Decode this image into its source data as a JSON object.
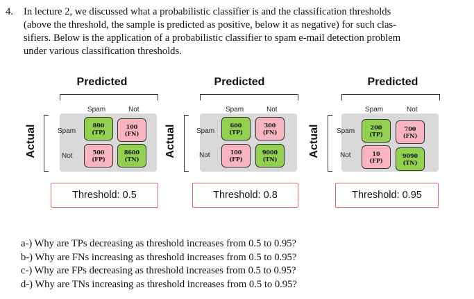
{
  "problem": {
    "number": "4.",
    "intro_line1": "In lecture 2, we discussed what a probabilistic classifier is and the classification thresholds",
    "intro_line2": "(above the threshold, the sample is predicted as positive, below it as negative) for such clas-",
    "intro_line3": "sifiers. Below is the application of a probabilistic classifier to spam e-mail detection problem",
    "intro_line4": "under various classification thresholds."
  },
  "labels": {
    "predicted": "Predicted",
    "actual": "Actual",
    "col_spam": "Spam",
    "col_not": "Not",
    "row_spam": "Spam",
    "row_not": "Not"
  },
  "matrices": [
    {
      "tp": "800",
      "tp_tag": "(TP)",
      "fn": "100",
      "fn_tag": "(FN)",
      "fp": "500",
      "fp_tag": "(FP)",
      "tn": "8600",
      "tn_tag": "(TN)",
      "threshold_label": "Threshold: 0.5"
    },
    {
      "tp": "600",
      "tp_tag": "(TP)",
      "fn": "300",
      "fn_tag": "(FN)",
      "fp": "100",
      "fp_tag": "(FP)",
      "tn": "9000",
      "tn_tag": "(TN)",
      "threshold_label": "Threshold: 0.8"
    },
    {
      "tp": "200",
      "tp_tag": "(TP)",
      "fn": "700",
      "fn_tag": "(FN)",
      "fp": "10",
      "fp_tag": "(FP)",
      "tn": "9090",
      "tn_tag": "(TN)",
      "threshold_label": "Threshold: 0.95"
    }
  ],
  "colors": {
    "correct": "#92d050",
    "incorrect": "#f8b5c0",
    "threshold_border": "#e06666"
  },
  "questions": [
    "a-) Why are TPs decreasing as threshold increases from 0.5 to 0.95?",
    "b-) Why are FNs increasing as threshold increases from 0.5 to 0.95?",
    "c-) Why are FPs decreasing as threshold increases from 0.5 to 0.95?",
    "d-) Why are TNs increasing as threshold increases from 0.5 to 0.95?"
  ]
}
